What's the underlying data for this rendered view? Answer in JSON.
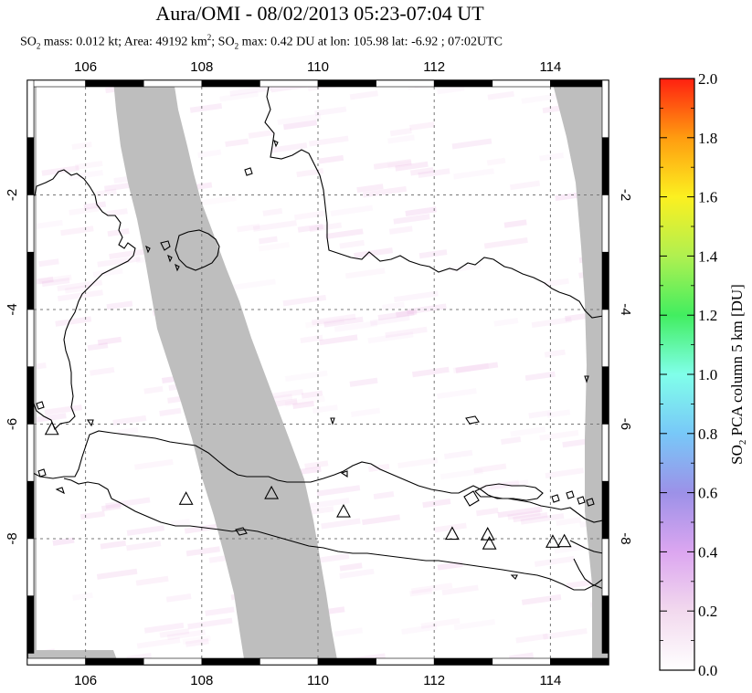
{
  "title": "Aura/OMI - 08/02/2013 05:23-07:04 UT",
  "subtitle": {
    "p1": "SO",
    "p1_sub": "2",
    "p2": " mass: 0.012 kt; Area: 49192 km",
    "p2_sup": "2",
    "p3": "; SO",
    "p3_sub": "2",
    "p4": " max: 0.42 DU at lon: 105.98 lat: -6.92 ; 07:02UTC"
  },
  "map": {
    "lon_range": [
      105,
      115
    ],
    "lat_range": [
      -10.2,
      0.0
    ],
    "lon_ticks": [
      106,
      108,
      110,
      112,
      114
    ],
    "lon_tick_labels": [
      "106",
      "108",
      "110",
      "112",
      "114"
    ],
    "lat_ticks": [
      -2,
      -4,
      -6,
      -8
    ],
    "lat_tick_labels": [
      "-2",
      "-4",
      "-6",
      "-8"
    ],
    "lat_tick_labels_right": [
      "-2",
      "-4",
      "-6",
      "-8"
    ],
    "grid": true,
    "colors": {
      "no_data": "#bebebe",
      "coast": "#000000",
      "grid": "#777777"
    },
    "volcanoes": [
      {
        "lon": 105.42,
        "lat": -6.1
      },
      {
        "lon": 107.73,
        "lat": -7.32
      },
      {
        "lon": 109.2,
        "lat": -7.22
      },
      {
        "lon": 110.44,
        "lat": -7.54
      },
      {
        "lon": 112.31,
        "lat": -7.93
      },
      {
        "lon": 112.92,
        "lat": -7.94
      },
      {
        "lon": 112.95,
        "lat": -8.1
      },
      {
        "lon": 114.04,
        "lat": -8.07
      },
      {
        "lon": 114.24,
        "lat": -8.06
      }
    ]
  },
  "colorbar": {
    "label": "SO2 PCA column 5 km [DU]",
    "label_main": "SO",
    "label_sub": "2",
    "label_rest": " PCA column 5 km [DU]",
    "range": [
      0.0,
      2.0
    ],
    "tick_labels": [
      "0.0",
      "0.2",
      "0.4",
      "0.6",
      "0.8",
      "1.0",
      "1.2",
      "1.4",
      "1.6",
      "1.8",
      "2.0"
    ],
    "colors": [
      "#ffffff",
      "#f2d9ee",
      "#dca6f0",
      "#9c91e8",
      "#78c8f8",
      "#80ffea",
      "#42ee60",
      "#b0f050",
      "#fcf020",
      "#ff9c10",
      "#ff2010"
    ]
  }
}
